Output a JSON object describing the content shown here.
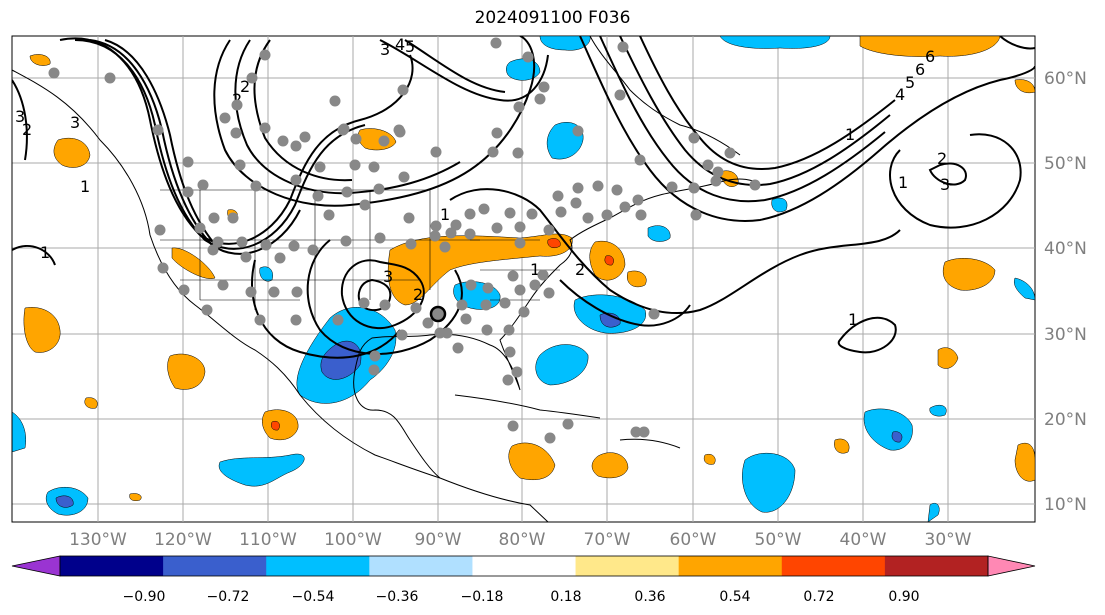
{
  "title": "2024091100 F036",
  "lon_labels": [
    "130°W",
    "120°W",
    "110°W",
    "100°W",
    "90°W",
    "80°W",
    "70°W",
    "60°W",
    "50°W",
    "40°W",
    "30°W"
  ],
  "lat_labels": [
    "60°N",
    "50°N",
    "40°N",
    "30°N",
    "20°N",
    "10°N"
  ],
  "colorbar": {
    "ticks": [
      "−0.90",
      "−0.72",
      "−0.54",
      "−0.36",
      "−0.18",
      "0.18",
      "0.36",
      "0.54",
      "0.72",
      "0.90"
    ],
    "colors": [
      "#9a34d2",
      "#00008b",
      "#3a5fcd",
      "#00bfff",
      "#b0e0ff",
      "#ffffff",
      "#ffe88a",
      "#ffa500",
      "#ff4500",
      "#b22222",
      "#ff88b4"
    ]
  },
  "contour_labels": [
    "1",
    "2",
    "3",
    "1",
    "2",
    "1",
    "2",
    "3",
    "1",
    "2",
    "3",
    "4",
    "5",
    "6",
    "3",
    "2",
    "1",
    "1",
    "2",
    "3",
    "4",
    "5",
    "6",
    "1"
  ],
  "colors": {
    "positive_fill": "#ffa500",
    "negative_fill": "#00bfff",
    "contour": "#000000",
    "station": "#888888"
  }
}
